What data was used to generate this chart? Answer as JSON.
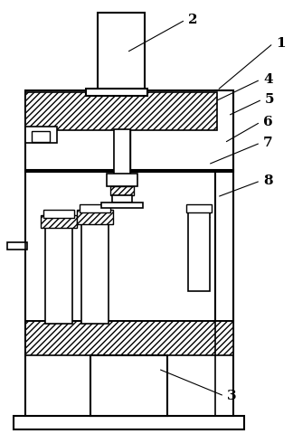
{
  "bg_color": "#ffffff",
  "labels": [
    [
      "1",
      302,
      48,
      240,
      100
    ],
    [
      "2",
      205,
      22,
      140,
      58
    ],
    [
      "3",
      248,
      438,
      175,
      408
    ],
    [
      "4",
      288,
      88,
      238,
      112
    ],
    [
      "5",
      290,
      110,
      252,
      128
    ],
    [
      "6",
      288,
      135,
      248,
      158
    ],
    [
      "7",
      288,
      158,
      230,
      182
    ],
    [
      "8",
      288,
      200,
      240,
      218
    ]
  ]
}
